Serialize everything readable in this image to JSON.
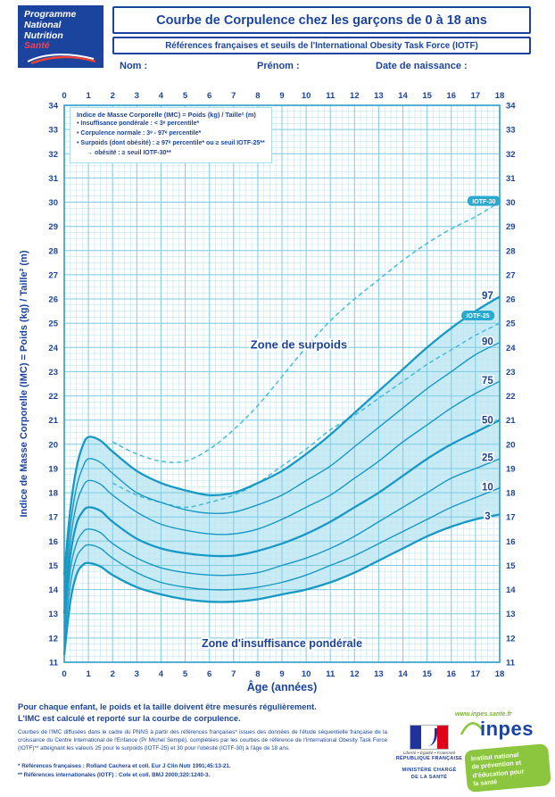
{
  "colors": {
    "accent": "#1a449e",
    "curve": "#1898c4",
    "curve_dashed": "#45bcdc",
    "band": "#c9ebf5",
    "grid_minor": "#bfe6f1",
    "grid_major": "#7fcbe4",
    "plot_border": "#2a9fc6",
    "pill": "#29a9d0",
    "red": "#ef4135",
    "green": "#8cc63f"
  },
  "logo_pnns": {
    "line1": "Programme",
    "line2": "National",
    "line3": "Nutrition",
    "line4": "Santé"
  },
  "header": {
    "title": "Courbe de Corpulence chez les garçons de 0 à 18 ans",
    "subtitle": "Références françaises et seuils de l'International Obesity Task Force (IOTF)",
    "name_label": "Nom :",
    "firstname_label": "Prénom :",
    "birthdate_label": "Date de naissance :"
  },
  "chart_data": {
    "type": "line",
    "title": "Courbe de Corpulence chez les garçons de 0 à 18 ans",
    "xlabel": "Âge (années)",
    "ylabel": "Indice de Masse Corporelle (IMC) = Poids (kg) / Taille² (m)",
    "xlim": [
      0,
      18
    ],
    "ylim": [
      11,
      34
    ],
    "x_ticks": [
      0,
      1,
      2,
      3,
      4,
      5,
      6,
      7,
      8,
      9,
      10,
      11,
      12,
      13,
      14,
      15,
      16,
      17,
      18
    ],
    "y_ticks": [
      11,
      12,
      13,
      14,
      15,
      16,
      17,
      18,
      19,
      20,
      21,
      22,
      23,
      24,
      25,
      26,
      27,
      28,
      29,
      30,
      31,
      32,
      33,
      34
    ],
    "grid": {
      "minor_step_x": 0.25,
      "minor_step_y": 0.25
    },
    "legend": {
      "lines": [
        "Indice de Masse Corporelle (IMC) = Poids (kg) / Taille² (m)",
        "• Insuffisance pondérale : < 3ᵉ percentile*",
        "• Corpulence normale : 3ᵉ - 97ᵉ percentile*",
        "• Surpoids (dont obésité) : ≥ 97ᵉ percentile* ou ≥ seuil IOTF-25**",
        "→ obésité : ≥ seuil IOTF-30**"
      ]
    },
    "zone_labels": [
      {
        "text": "Zone de surpoids",
        "x": 9.7,
        "y": 24.1,
        "size": 13
      },
      {
        "text": "Zone d'insuffisance pondérale",
        "x": 9.0,
        "y": 11.78,
        "size": 12.5
      }
    ],
    "band": {
      "upper": "P97",
      "lower": "P3"
    },
    "series": [
      {
        "name": "IOTF-30",
        "style": "dashed",
        "label": {
          "text": "IOTF-30",
          "type": "pill",
          "x": 17.35,
          "y": 30.05
        },
        "points": [
          [
            2,
            20.1
          ],
          [
            3,
            19.6
          ],
          [
            4,
            19.3
          ],
          [
            5,
            19.3
          ],
          [
            6,
            19.8
          ],
          [
            7,
            20.6
          ],
          [
            8,
            21.6
          ],
          [
            9,
            22.8
          ],
          [
            10,
            24.0
          ],
          [
            11,
            25.1
          ],
          [
            12,
            26.0
          ],
          [
            13,
            26.8
          ],
          [
            14,
            27.6
          ],
          [
            15,
            28.3
          ],
          [
            16,
            28.9
          ],
          [
            17,
            29.4
          ],
          [
            18,
            30.0
          ]
        ]
      },
      {
        "name": "IOTF-25",
        "style": "dashed",
        "label": {
          "text": "IOTF-25",
          "type": "pill",
          "x": 17.1,
          "y": 25.32
        },
        "points": [
          [
            2,
            18.4
          ],
          [
            3,
            17.9
          ],
          [
            4,
            17.6
          ],
          [
            5,
            17.4
          ],
          [
            6,
            17.6
          ],
          [
            7,
            17.9
          ],
          [
            8,
            18.4
          ],
          [
            9,
            19.1
          ],
          [
            10,
            19.8
          ],
          [
            11,
            20.6
          ],
          [
            12,
            21.2
          ],
          [
            13,
            21.9
          ],
          [
            14,
            22.6
          ],
          [
            15,
            23.3
          ],
          [
            16,
            23.9
          ],
          [
            17,
            24.5
          ],
          [
            18,
            25.0
          ]
        ]
      },
      {
        "name": "P97",
        "style": "solid",
        "weight": "bold",
        "label": {
          "text": "97",
          "type": "text",
          "x": 17.5,
          "y": 26.15
        },
        "points": [
          [
            0,
            14.6
          ],
          [
            0.25,
            17.3
          ],
          [
            0.5,
            19.0
          ],
          [
            0.75,
            19.9
          ],
          [
            1,
            20.3
          ],
          [
            1.5,
            20.15
          ],
          [
            2,
            19.7
          ],
          [
            3,
            18.9
          ],
          [
            4,
            18.4
          ],
          [
            5,
            18.1
          ],
          [
            6,
            17.9
          ],
          [
            7,
            18.0
          ],
          [
            8,
            18.4
          ],
          [
            9,
            18.9
          ],
          [
            10,
            19.6
          ],
          [
            11,
            20.4
          ],
          [
            12,
            21.3
          ],
          [
            13,
            22.2
          ],
          [
            14,
            23.1
          ],
          [
            15,
            24.0
          ],
          [
            16,
            24.8
          ],
          [
            17,
            25.5
          ],
          [
            18,
            26.1
          ]
        ]
      },
      {
        "name": "P90",
        "style": "solid",
        "label": {
          "text": "90",
          "type": "text",
          "x": 17.5,
          "y": 24.25
        },
        "points": [
          [
            0,
            14.0
          ],
          [
            0.25,
            16.6
          ],
          [
            0.5,
            18.2
          ],
          [
            0.75,
            19.0
          ],
          [
            1,
            19.4
          ],
          [
            1.5,
            19.25
          ],
          [
            2,
            18.8
          ],
          [
            3,
            18.0
          ],
          [
            4,
            17.6
          ],
          [
            5,
            17.3
          ],
          [
            6,
            17.15
          ],
          [
            7,
            17.2
          ],
          [
            8,
            17.5
          ],
          [
            9,
            17.9
          ],
          [
            10,
            18.5
          ],
          [
            11,
            19.1
          ],
          [
            12,
            19.9
          ],
          [
            13,
            20.7
          ],
          [
            14,
            21.5
          ],
          [
            15,
            22.3
          ],
          [
            16,
            23.0
          ],
          [
            17,
            23.7
          ],
          [
            18,
            24.2
          ]
        ]
      },
      {
        "name": "P75",
        "style": "solid",
        "label": {
          "text": "75",
          "type": "text",
          "x": 17.5,
          "y": 22.65
        },
        "points": [
          [
            0,
            13.5
          ],
          [
            0.25,
            16.0
          ],
          [
            0.5,
            17.5
          ],
          [
            0.75,
            18.2
          ],
          [
            1,
            18.5
          ],
          [
            1.5,
            18.35
          ],
          [
            2,
            17.9
          ],
          [
            3,
            17.2
          ],
          [
            4,
            16.7
          ],
          [
            5,
            16.45
          ],
          [
            6,
            16.3
          ],
          [
            7,
            16.3
          ],
          [
            8,
            16.5
          ],
          [
            9,
            16.9
          ],
          [
            10,
            17.4
          ],
          [
            11,
            17.9
          ],
          [
            12,
            18.6
          ],
          [
            13,
            19.3
          ],
          [
            14,
            20.1
          ],
          [
            15,
            20.8
          ],
          [
            16,
            21.5
          ],
          [
            17,
            22.1
          ],
          [
            18,
            22.6
          ]
        ]
      },
      {
        "name": "P50",
        "style": "solid",
        "weight": "bold",
        "label": {
          "text": "50",
          "type": "text",
          "x": 17.5,
          "y": 21.0
        },
        "points": [
          [
            0,
            13.0
          ],
          [
            0.25,
            15.4
          ],
          [
            0.5,
            16.7
          ],
          [
            0.75,
            17.2
          ],
          [
            1,
            17.4
          ],
          [
            1.5,
            17.25
          ],
          [
            2,
            16.8
          ],
          [
            3,
            16.1
          ],
          [
            4,
            15.7
          ],
          [
            5,
            15.5
          ],
          [
            6,
            15.4
          ],
          [
            7,
            15.4
          ],
          [
            8,
            15.6
          ],
          [
            9,
            15.9
          ],
          [
            10,
            16.3
          ],
          [
            11,
            16.8
          ],
          [
            12,
            17.4
          ],
          [
            13,
            18.0
          ],
          [
            14,
            18.7
          ],
          [
            15,
            19.4
          ],
          [
            16,
            20.0
          ],
          [
            17,
            20.5
          ],
          [
            18,
            21.0
          ]
        ]
      },
      {
        "name": "P25",
        "style": "solid",
        "label": {
          "text": "25",
          "type": "text",
          "x": 17.5,
          "y": 19.45
        },
        "points": [
          [
            0,
            12.4
          ],
          [
            0.25,
            14.8
          ],
          [
            0.5,
            15.9
          ],
          [
            0.75,
            16.35
          ],
          [
            1,
            16.5
          ],
          [
            1.5,
            16.35
          ],
          [
            2,
            15.9
          ],
          [
            3,
            15.3
          ],
          [
            4,
            14.9
          ],
          [
            5,
            14.7
          ],
          [
            6,
            14.6
          ],
          [
            7,
            14.6
          ],
          [
            8,
            14.7
          ],
          [
            9,
            15.0
          ],
          [
            10,
            15.3
          ],
          [
            11,
            15.7
          ],
          [
            12,
            16.2
          ],
          [
            13,
            16.8
          ],
          [
            14,
            17.4
          ],
          [
            15,
            18.0
          ],
          [
            16,
            18.6
          ],
          [
            17,
            19.0
          ],
          [
            18,
            19.4
          ]
        ]
      },
      {
        "name": "P10",
        "style": "solid",
        "label": {
          "text": "10",
          "type": "text",
          "x": 17.5,
          "y": 18.25
        },
        "points": [
          [
            0,
            11.9
          ],
          [
            0.25,
            14.2
          ],
          [
            0.5,
            15.3
          ],
          [
            0.75,
            15.7
          ],
          [
            1,
            15.85
          ],
          [
            1.5,
            15.7
          ],
          [
            2,
            15.3
          ],
          [
            3,
            14.7
          ],
          [
            4,
            14.3
          ],
          [
            5,
            14.1
          ],
          [
            6,
            14.0
          ],
          [
            7,
            14.0
          ],
          [
            8,
            14.1
          ],
          [
            9,
            14.3
          ],
          [
            10,
            14.6
          ],
          [
            11,
            15.0
          ],
          [
            12,
            15.4
          ],
          [
            13,
            15.9
          ],
          [
            14,
            16.4
          ],
          [
            15,
            16.9
          ],
          [
            16,
            17.4
          ],
          [
            17,
            17.8
          ],
          [
            18,
            18.2
          ]
        ]
      },
      {
        "name": "P3",
        "style": "solid",
        "weight": "bold",
        "label": {
          "text": "3",
          "type": "text",
          "x": 17.5,
          "y": 17.05
        },
        "points": [
          [
            0,
            11.3
          ],
          [
            0.25,
            13.5
          ],
          [
            0.5,
            14.6
          ],
          [
            0.75,
            15.0
          ],
          [
            1,
            15.1
          ],
          [
            1.5,
            14.95
          ],
          [
            2,
            14.6
          ],
          [
            3,
            14.1
          ],
          [
            4,
            13.8
          ],
          [
            5,
            13.6
          ],
          [
            6,
            13.5
          ],
          [
            7,
            13.5
          ],
          [
            8,
            13.6
          ],
          [
            9,
            13.8
          ],
          [
            10,
            14.0
          ],
          [
            11,
            14.3
          ],
          [
            12,
            14.7
          ],
          [
            13,
            15.2
          ],
          [
            14,
            15.7
          ],
          [
            15,
            16.2
          ],
          [
            16,
            16.6
          ],
          [
            17,
            16.9
          ],
          [
            18,
            17.1
          ]
        ]
      }
    ]
  },
  "footer": {
    "bold_line1": "Pour chaque enfant, le poids et la taille doivent être mesurés régulièrement.",
    "bold_line2": "L'IMC est calculé et reporté sur la courbe de corpulence.",
    "small_print": "Courbes de l'IMC diffusées dans le cadre du PNNS à partir des références françaises* issues des données de l'étude séquentielle française de la croissance du Centre International de l'Enfance (Pr Michel Sempé), complétées par les courbes de référence de l'International Obesity Task Force (IOTF)** atteignant les valeurs 25 pour le surpoids (IOTF-25) et 30 pour l'obésité (IOTF-30) à l'âge de 18 ans.",
    "ref1": "* Références françaises : Rolland Cachera et coll. Eur J Clin Nutr 1991;45:13-21.",
    "ref2": "** Références internationales (IOTF) : Cole et coll. BMJ 2000;320:1240-3."
  },
  "logos": {
    "ministry": {
      "motto": "Liberté • Égalité • Fraternité",
      "republic": "RÉPUBLIQUE FRANÇAISE",
      "line1": "MINISTÈRE CHARGÉ",
      "line2": "DE LA SANTÉ"
    },
    "inpes": {
      "url": "www.inpes.sante.fr",
      "name": "inpes",
      "tag1": "Institut national",
      "tag2": "de prévention et",
      "tag3": "d'éducation pour",
      "tag4": "la santé"
    }
  }
}
